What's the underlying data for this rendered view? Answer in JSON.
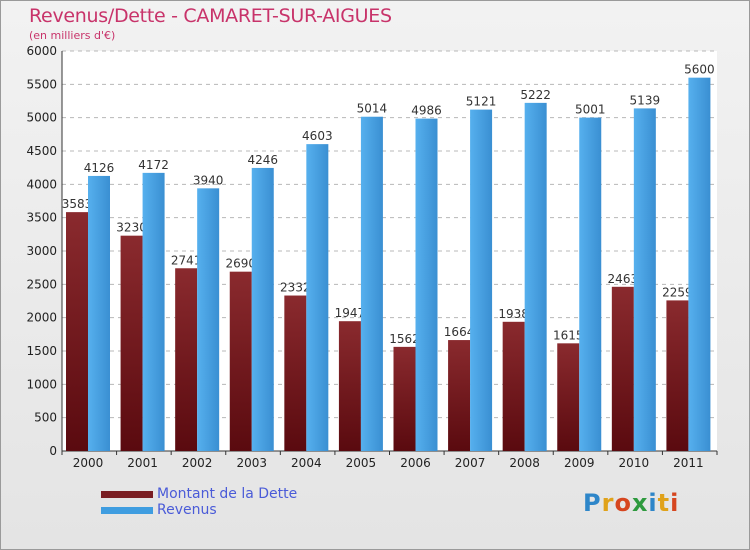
{
  "header": {
    "title": "Revenus/Dette - CAMARET-SUR-AIGUES",
    "subtitle": "(en milliers d'€)"
  },
  "chart_data": {
    "type": "bar",
    "categories": [
      "2000",
      "2001",
      "2002",
      "2003",
      "2004",
      "2005",
      "2006",
      "2007",
      "2008",
      "2009",
      "2010",
      "2011"
    ],
    "series": [
      {
        "name": "Montant de la Dette",
        "values": [
          3583,
          3230,
          2741,
          2690,
          2332,
          1947,
          1562,
          1664,
          1938,
          1615,
          2463,
          2259
        ],
        "color": "#7a1e22"
      },
      {
        "name": "Revenus",
        "values": [
          4126,
          4172,
          3940,
          4246,
          4603,
          5014,
          4986,
          5121,
          5222,
          5001,
          5139,
          5600
        ],
        "color": "#3f9de0"
      }
    ],
    "ylim": [
      0,
      6000
    ],
    "yticks": [
      0,
      500,
      1000,
      1500,
      2000,
      2500,
      3000,
      3500,
      4000,
      4500,
      5000,
      5500,
      6000
    ],
    "grid": true,
    "legend_position": "bottom-left",
    "title": "Revenus/Dette - CAMARET-SUR-AIGUES",
    "subtitle": "(en milliers d'€)"
  },
  "legend": {
    "items": [
      {
        "label": "Montant de la Dette",
        "color": "#7a1e22"
      },
      {
        "label": "Revenus",
        "color": "#3f9de0"
      }
    ]
  },
  "logo": {
    "letters": [
      "P",
      "r",
      "o",
      "x",
      "i",
      "t",
      "i"
    ],
    "colors": [
      "#2e86c9",
      "#e0a21a",
      "#d6461f",
      "#2e9a3e",
      "#2e86c9",
      "#e0a21a",
      "#d6461f"
    ]
  }
}
